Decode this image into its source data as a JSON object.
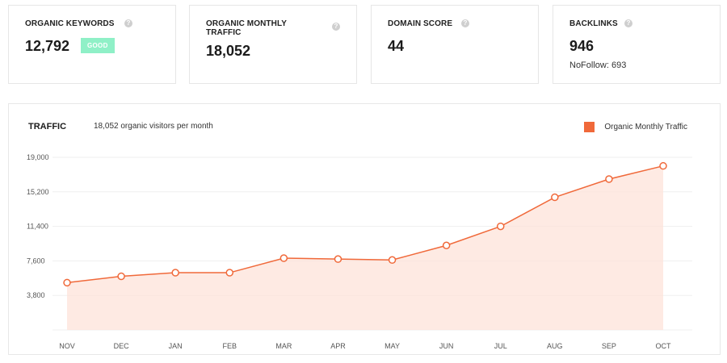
{
  "metrics": [
    {
      "label": "ORGANIC KEYWORDS",
      "value": "12,792",
      "badge": "GOOD",
      "info": "?"
    },
    {
      "label": "ORGANIC MONTHLY TRAFFIC",
      "value": "18,052",
      "info": "?"
    },
    {
      "label": "DOMAIN SCORE",
      "value": "44",
      "info": "?"
    },
    {
      "label": "BACKLINKS",
      "value": "946",
      "sub": "NoFollow: 693",
      "info": "?"
    }
  ],
  "traffic": {
    "title": "TRAFFIC",
    "subtitle": "18,052 organic visitors per month",
    "legend": "Organic Monthly Traffic"
  },
  "colors": {
    "accent": "#f0693a",
    "area_fill": "#fde3da",
    "badge_good": "#8ff0c7"
  },
  "chart_data": {
    "type": "area",
    "categories": [
      "NOV",
      "DEC",
      "JAN",
      "FEB",
      "MAR",
      "APR",
      "MAY",
      "JUN",
      "JUL",
      "AUG",
      "SEP",
      "OCT"
    ],
    "series": [
      {
        "name": "Organic Monthly Traffic",
        "values": [
          5200,
          5900,
          6300,
          6300,
          7900,
          7800,
          7700,
          9300,
          11400,
          14600,
          16600,
          18052
        ]
      }
    ],
    "yticks": [
      "3,800",
      "7,600",
      "11,400",
      "15,200",
      "19,000"
    ],
    "ylim": [
      0,
      19000
    ],
    "grid": true,
    "legend_position": "top-right"
  }
}
